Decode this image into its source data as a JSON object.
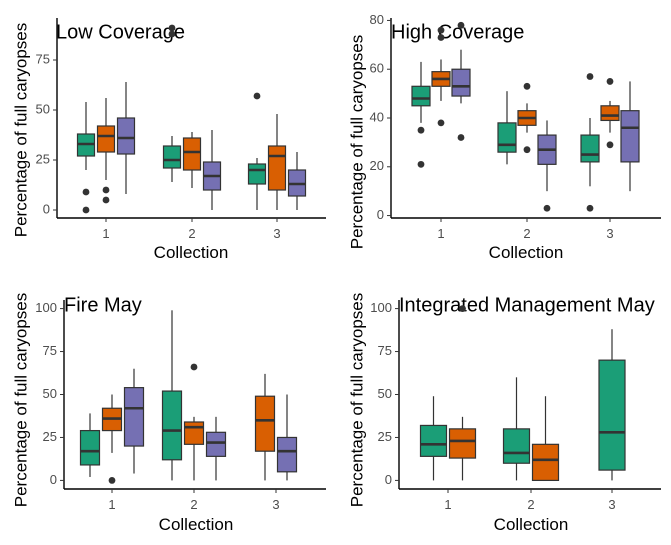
{
  "figure": {
    "shared": {
      "ylabel": "Percentage of full caryopses",
      "xlabel": "Collection",
      "series_colors": [
        "#1b9e77",
        "#d95f02",
        "#7570b3"
      ]
    }
  },
  "chart_data": [
    {
      "type": "boxplot",
      "title": "Low Coverage",
      "xlabel": "Collection",
      "ylabel": "Percentage of full caryopses",
      "categories": [
        "1",
        "2",
        "3"
      ],
      "ylim": [
        -4,
        96
      ],
      "yticks": [
        0,
        25,
        50,
        75
      ],
      "grid": false,
      "legend": "none",
      "boxes": [
        {
          "category": "1",
          "series": 0,
          "color": "#1b9e77",
          "min": 20,
          "q1": 27,
          "median": 33,
          "q3": 38,
          "max": 54,
          "outliers": [
            9,
            0
          ]
        },
        {
          "category": "1",
          "series": 1,
          "color": "#d95f02",
          "min": 15,
          "q1": 29,
          "median": 37,
          "q3": 42,
          "max": 56,
          "outliers": [
            10,
            5
          ]
        },
        {
          "category": "1",
          "series": 2,
          "color": "#7570b3",
          "min": 8,
          "q1": 28,
          "median": 36,
          "q3": 46,
          "max": 64,
          "outliers": []
        },
        {
          "category": "2",
          "series": 0,
          "color": "#1b9e77",
          "min": 14,
          "q1": 21,
          "median": 25,
          "q3": 32,
          "max": 37,
          "outliers": [
            91,
            88
          ]
        },
        {
          "category": "2",
          "series": 1,
          "color": "#d95f02",
          "min": 11,
          "q1": 20,
          "median": 29,
          "q3": 36,
          "max": 39,
          "outliers": []
        },
        {
          "category": "2",
          "series": 2,
          "color": "#7570b3",
          "min": 0,
          "q1": 10,
          "median": 17,
          "q3": 24,
          "max": 40,
          "outliers": []
        },
        {
          "category": "3",
          "series": 0,
          "color": "#1b9e77",
          "min": 0,
          "q1": 13,
          "median": 20,
          "q3": 23,
          "max": 26,
          "outliers": [
            57
          ]
        },
        {
          "category": "3",
          "series": 1,
          "color": "#d95f02",
          "min": 0,
          "q1": 10,
          "median": 27,
          "q3": 32,
          "max": 48,
          "outliers": []
        },
        {
          "category": "3",
          "series": 2,
          "color": "#7570b3",
          "min": 0,
          "q1": 7,
          "median": 13,
          "q3": 20,
          "max": 29,
          "outliers": []
        }
      ]
    },
    {
      "type": "boxplot",
      "title": "High Coverage",
      "xlabel": "Collection",
      "ylabel": "Percentage of full caryopses",
      "categories": [
        "1",
        "2",
        "3"
      ],
      "ylim": [
        -1,
        81
      ],
      "yticks": [
        0,
        20,
        40,
        60,
        80
      ],
      "grid": false,
      "legend": "none",
      "boxes": [
        {
          "category": "1",
          "series": 0,
          "color": "#1b9e77",
          "min": 38,
          "q1": 45,
          "median": 48,
          "q3": 53,
          "max": 63,
          "outliers": [
            35,
            21
          ]
        },
        {
          "category": "1",
          "series": 1,
          "color": "#d95f02",
          "min": 47,
          "q1": 53,
          "median": 56,
          "q3": 59,
          "max": 64,
          "outliers": [
            76,
            73,
            38
          ]
        },
        {
          "category": "1",
          "series": 2,
          "color": "#7570b3",
          "min": 46,
          "q1": 49,
          "median": 53,
          "q3": 60,
          "max": 68,
          "outliers": [
            78,
            32
          ]
        },
        {
          "category": "2",
          "series": 0,
          "color": "#1b9e77",
          "min": 21,
          "q1": 26,
          "median": 29,
          "q3": 38,
          "max": 51,
          "outliers": []
        },
        {
          "category": "2",
          "series": 1,
          "color": "#d95f02",
          "min": 34,
          "q1": 37,
          "median": 40,
          "q3": 43,
          "max": 46,
          "outliers": [
            53,
            27
          ]
        },
        {
          "category": "2",
          "series": 2,
          "color": "#7570b3",
          "min": 10,
          "q1": 21,
          "median": 27,
          "q3": 33,
          "max": 39,
          "outliers": [
            3
          ]
        },
        {
          "category": "3",
          "series": 0,
          "color": "#1b9e77",
          "min": 12,
          "q1": 22,
          "median": 25,
          "q3": 33,
          "max": 40,
          "outliers": [
            57,
            3
          ]
        },
        {
          "category": "3",
          "series": 1,
          "color": "#d95f02",
          "min": 34,
          "q1": 39,
          "median": 41,
          "q3": 45,
          "max": 47,
          "outliers": [
            55,
            29
          ]
        },
        {
          "category": "3",
          "series": 2,
          "color": "#7570b3",
          "min": 10,
          "q1": 22,
          "median": 36,
          "q3": 43,
          "max": 55,
          "outliers": []
        }
      ]
    },
    {
      "type": "boxplot",
      "title": "Fire May",
      "xlabel": "Collection",
      "ylabel": "Percentage of full caryopses",
      "categories": [
        "1",
        "2",
        "3"
      ],
      "ylim": [
        -5,
        105
      ],
      "yticks": [
        0,
        25,
        50,
        75,
        100
      ],
      "grid": false,
      "legend": "none",
      "boxes": [
        {
          "category": "1",
          "series": 0,
          "color": "#1b9e77",
          "min": 2,
          "q1": 9,
          "median": 17,
          "q3": 29,
          "max": 39,
          "outliers": []
        },
        {
          "category": "1",
          "series": 1,
          "color": "#d95f02",
          "min": 16,
          "q1": 29,
          "median": 36,
          "q3": 42,
          "max": 50,
          "outliers": [
            0
          ]
        },
        {
          "category": "1",
          "series": 2,
          "color": "#7570b3",
          "min": 4,
          "q1": 20,
          "median": 42,
          "q3": 54,
          "max": 65,
          "outliers": []
        },
        {
          "category": "2",
          "series": 0,
          "color": "#1b9e77",
          "min": 0,
          "q1": 12,
          "median": 29,
          "q3": 52,
          "max": 99,
          "outliers": []
        },
        {
          "category": "2",
          "series": 1,
          "color": "#d95f02",
          "min": 0,
          "q1": 21,
          "median": 31,
          "q3": 34,
          "max": 37,
          "outliers": [
            66
          ]
        },
        {
          "category": "2",
          "series": 2,
          "color": "#7570b3",
          "min": 0,
          "q1": 14,
          "median": 22,
          "q3": 28,
          "max": 37,
          "outliers": []
        },
        {
          "category": "3",
          "series": 1,
          "color": "#d95f02",
          "min": 0,
          "q1": 17,
          "median": 35,
          "q3": 49,
          "max": 62,
          "outliers": []
        },
        {
          "category": "3",
          "series": 2,
          "color": "#7570b3",
          "min": 0,
          "q1": 5,
          "median": 17,
          "q3": 25,
          "max": 50,
          "outliers": []
        }
      ]
    },
    {
      "type": "boxplot",
      "title": "Integrated Management May",
      "xlabel": "Collection",
      "ylabel": "Percentage of full caryopses",
      "categories": [
        "1",
        "2",
        "3"
      ],
      "ylim": [
        -5,
        105
      ],
      "yticks": [
        0,
        25,
        50,
        75,
        100
      ],
      "grid": false,
      "legend": "none",
      "boxes": [
        {
          "category": "1",
          "series": 0,
          "color": "#1b9e77",
          "min": 0,
          "q1": 14,
          "median": 21,
          "q3": 32,
          "max": 49,
          "outliers": []
        },
        {
          "category": "1",
          "series": 1,
          "color": "#d95f02",
          "min": 0,
          "q1": 13,
          "median": 23,
          "q3": 30,
          "max": 37,
          "outliers": [
            100
          ]
        },
        {
          "category": "2",
          "series": 0,
          "color": "#1b9e77",
          "min": 0,
          "q1": 10,
          "median": 16,
          "q3": 30,
          "max": 60,
          "outliers": []
        },
        {
          "category": "2",
          "series": 1,
          "color": "#d95f02",
          "min": 0,
          "q1": 0,
          "median": 12,
          "q3": 21,
          "max": 49,
          "outliers": []
        },
        {
          "category": "3",
          "series": 0,
          "color": "#1b9e77",
          "min": 0,
          "q1": 6,
          "median": 28,
          "q3": 70,
          "max": 88,
          "outliers": []
        }
      ]
    }
  ]
}
